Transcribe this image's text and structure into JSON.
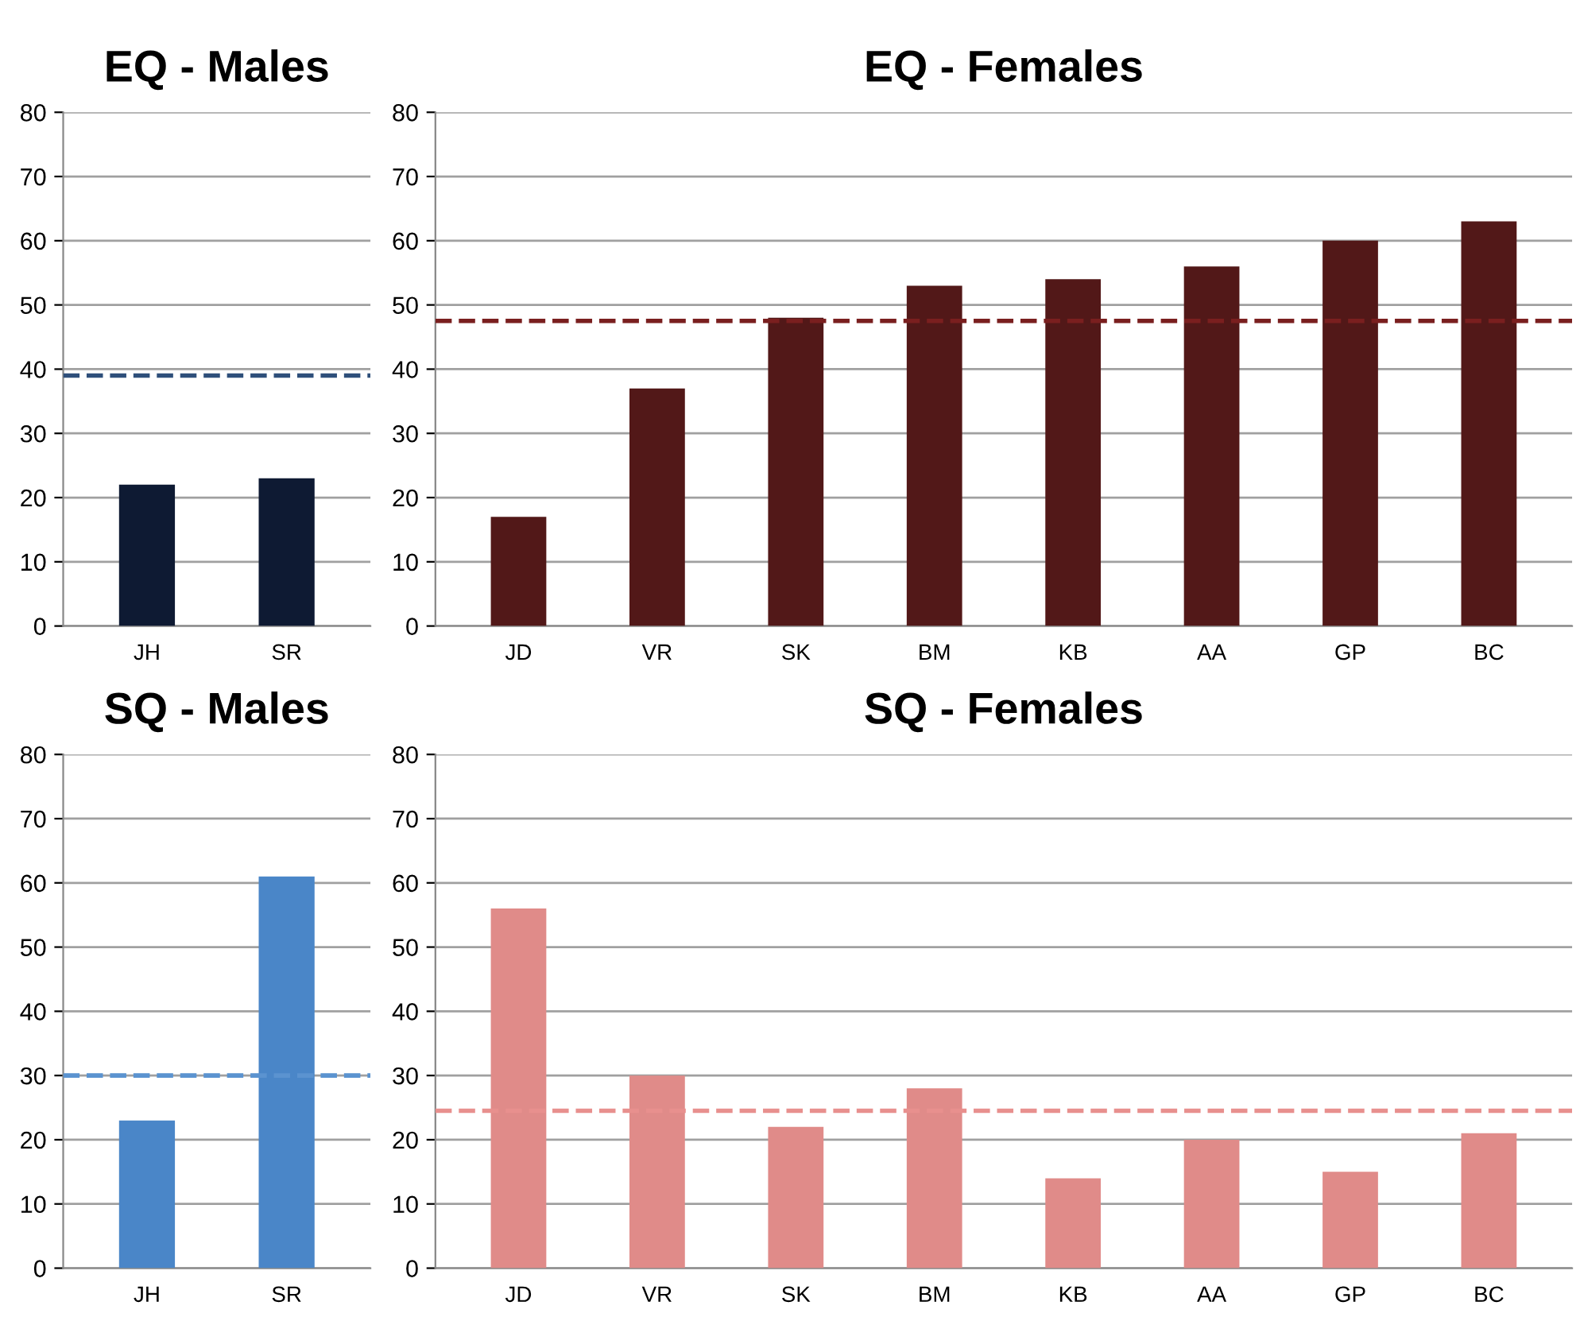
{
  "chart_data": [
    {
      "type": "bar",
      "title": "EQ - Males",
      "categories": [
        "JH",
        "SR"
      ],
      "values": [
        22,
        23
      ],
      "color": "#0e1a33",
      "ylim": [
        0,
        80
      ],
      "yticks": [
        0,
        10,
        20,
        30,
        40,
        50,
        60,
        70,
        80
      ],
      "grid": "y",
      "ref_lines": [
        {
          "axis": "y",
          "value": 39,
          "color": "#2e4f7a",
          "line_style": "dashed"
        }
      ]
    },
    {
      "type": "bar",
      "title": "EQ - Females",
      "categories": [
        "JD",
        "VR",
        "SK",
        "BM",
        "KB",
        "AA",
        "GP",
        "BC"
      ],
      "values": [
        17,
        37,
        48,
        53,
        54,
        56,
        60,
        63
      ],
      "color": "#521818",
      "ylim": [
        0,
        80
      ],
      "yticks": [
        0,
        10,
        20,
        30,
        40,
        50,
        60,
        70,
        80
      ],
      "grid": "y",
      "ref_lines": [
        {
          "axis": "y",
          "value": 47.5,
          "color": "#7a1f1f",
          "line_style": "dashed"
        }
      ]
    },
    {
      "type": "bar",
      "title": "SQ - Males",
      "categories": [
        "JH",
        "SR"
      ],
      "values": [
        23,
        61
      ],
      "color": "#4a86c8",
      "ylim": [
        0,
        80
      ],
      "yticks": [
        0,
        10,
        20,
        30,
        40,
        50,
        60,
        70,
        80
      ],
      "grid": "y",
      "ref_lines": [
        {
          "axis": "y",
          "value": 30,
          "color": "#5b93d0",
          "line_style": "dashed"
        }
      ]
    },
    {
      "type": "bar",
      "title": "SQ - Females",
      "categories": [
        "JD",
        "VR",
        "SK",
        "BM",
        "KB",
        "AA",
        "GP",
        "BC"
      ],
      "values": [
        56,
        30,
        22,
        28,
        14,
        20,
        15,
        21
      ],
      "color": "#e08b89",
      "ylim": [
        0,
        80
      ],
      "yticks": [
        0,
        10,
        20,
        30,
        40,
        50,
        60,
        70,
        80
      ],
      "grid": "y",
      "ref_lines": [
        {
          "axis": "y",
          "value": 24.5,
          "color": "#e8908e",
          "line_style": "dashed"
        }
      ]
    }
  ]
}
